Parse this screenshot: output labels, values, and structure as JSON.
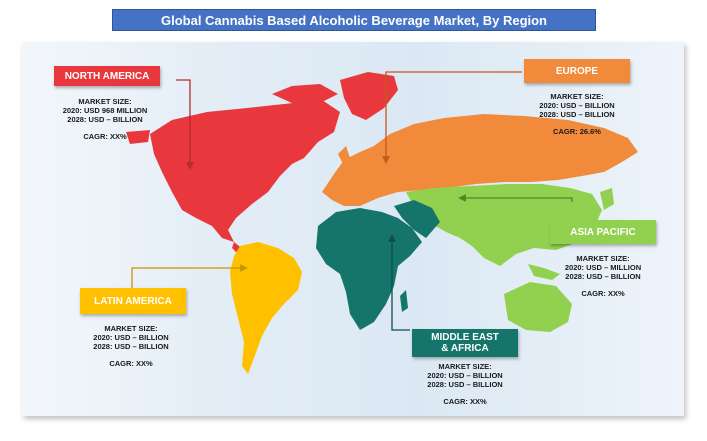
{
  "title": "Global Cannabis Based Alcoholic Beverage Market, By Region",
  "regions": {
    "north_america": {
      "name": "NORTH AMERICA",
      "color": "#e8383d",
      "market_size_label": "MARKET SIZE:",
      "value_2020": "2020: USD 968 MILLION",
      "value_2028": "2028: USD – BILLION",
      "cagr": "CAGR: XX%"
    },
    "europe": {
      "name": "EUROPE",
      "color": "#f28a3c",
      "market_size_label": "MARKET SIZE:",
      "value_2020": "2020: USD – BILLION",
      "value_2028": "2028: USD – BILLION",
      "cagr": "CAGR: 26.6%"
    },
    "asia_pacific": {
      "name": "ASIA PACIFIC",
      "color": "#92d050",
      "market_size_label": "MARKET SIZE:",
      "value_2020": "2020: USD – MILLION",
      "value_2028": "2028: USD – BILLION",
      "cagr": "CAGR: XX%"
    },
    "latin_america": {
      "name": "LATIN AMERICA",
      "color": "#ffc000",
      "market_size_label": "MARKET SIZE:",
      "value_2020": "2020: USD – BILLION",
      "value_2028": "2028: USD – BILLION",
      "cagr": "CAGR: XX%"
    },
    "middle_east_africa": {
      "name_line1": "MIDDLE EAST",
      "name_line2": "& AFRICA",
      "color": "#15756a",
      "market_size_label": "MARKET SIZE:",
      "value_2020": "2020: USD – BILLION",
      "value_2028": "2028: USD – BILLION",
      "cagr": "CAGR: XX%"
    }
  }
}
